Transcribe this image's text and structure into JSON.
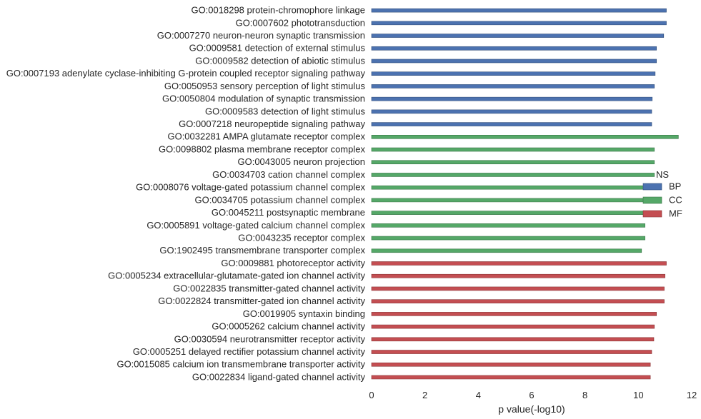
{
  "chart_data": {
    "type": "bar",
    "orientation": "horizontal",
    "xlabel": "p value(-log10)",
    "xlim": [
      0,
      12
    ],
    "xticks": [
      0,
      2,
      4,
      6,
      8,
      10,
      12
    ],
    "grid": false,
    "legend": {
      "title": "NS",
      "placement": "center-right",
      "entries": [
        {
          "name": "BP",
          "color": "#4c72b0"
        },
        {
          "name": "CC",
          "color": "#55a868"
        },
        {
          "name": "MF",
          "color": "#c44e52"
        }
      ]
    },
    "bars": [
      {
        "label": "GO:0018298 protein-chromophore linkage",
        "value": 11.05,
        "group": "BP"
      },
      {
        "label": "GO:0007602 phototransduction",
        "value": 11.05,
        "group": "BP"
      },
      {
        "label": "GO:0007270 neuron-neuron synaptic transmission",
        "value": 10.95,
        "group": "BP"
      },
      {
        "label": "GO:0009581 detection of external stimulus",
        "value": 10.68,
        "group": "BP"
      },
      {
        "label": "GO:0009582 detection of abiotic stimulus",
        "value": 10.68,
        "group": "BP"
      },
      {
        "label": "GO:0007193 adenylate cyclase-inhibiting G-protein coupled receptor signaling pathway",
        "value": 10.63,
        "group": "BP"
      },
      {
        "label": "GO:0050953 sensory perception of light stimulus",
        "value": 10.6,
        "group": "BP"
      },
      {
        "label": "GO:0050804 modulation of synaptic transmission",
        "value": 10.52,
        "group": "BP"
      },
      {
        "label": "GO:0009583 detection of light stimulus",
        "value": 10.5,
        "group": "BP"
      },
      {
        "label": "GO:0007218 neuropeptide signaling pathway",
        "value": 10.5,
        "group": "BP"
      },
      {
        "label": "GO:0032281 AMPA glutamate receptor complex",
        "value": 11.5,
        "group": "CC"
      },
      {
        "label": "GO:0098802 plasma membrane receptor complex",
        "value": 10.6,
        "group": "CC"
      },
      {
        "label": "GO:0043005 neuron projection",
        "value": 10.6,
        "group": "CC"
      },
      {
        "label": "GO:0034703 cation channel complex",
        "value": 10.6,
        "group": "CC"
      },
      {
        "label": "GO:0008076 voltage-gated potassium channel complex",
        "value": 10.3,
        "group": "CC"
      },
      {
        "label": "GO:0034705 potassium channel complex",
        "value": 10.3,
        "group": "CC"
      },
      {
        "label": "GO:0045211 postsynaptic membrane",
        "value": 10.3,
        "group": "CC"
      },
      {
        "label": "GO:0005891 voltage-gated calcium channel complex",
        "value": 10.25,
        "group": "CC"
      },
      {
        "label": "GO:0043235 receptor complex",
        "value": 10.25,
        "group": "CC"
      },
      {
        "label": "GO:1902495 transmembrane transporter complex",
        "value": 10.12,
        "group": "CC"
      },
      {
        "label": "GO:0009881 photoreceptor activity",
        "value": 11.05,
        "group": "MF"
      },
      {
        "label": "GO:0005234 extracellular-glutamate-gated ion channel activity",
        "value": 11.0,
        "group": "MF"
      },
      {
        "label": "GO:0022835 transmitter-gated channel activity",
        "value": 10.97,
        "group": "MF"
      },
      {
        "label": "GO:0022824 transmitter-gated ion channel activity",
        "value": 10.97,
        "group": "MF"
      },
      {
        "label": "GO:0019905 syntaxin binding",
        "value": 10.68,
        "group": "MF"
      },
      {
        "label": "GO:0005262 calcium channel activity",
        "value": 10.6,
        "group": "MF"
      },
      {
        "label": "GO:0030594 neurotransmitter receptor activity",
        "value": 10.58,
        "group": "MF"
      },
      {
        "label": "GO:0005251 delayed rectifier potassium channel activity",
        "value": 10.5,
        "group": "MF"
      },
      {
        "label": "GO:0015085 calcium ion transmembrane transporter activity",
        "value": 10.45,
        "group": "MF"
      },
      {
        "label": "GO:0022834 ligand-gated channel activity",
        "value": 10.45,
        "group": "MF"
      }
    ]
  }
}
